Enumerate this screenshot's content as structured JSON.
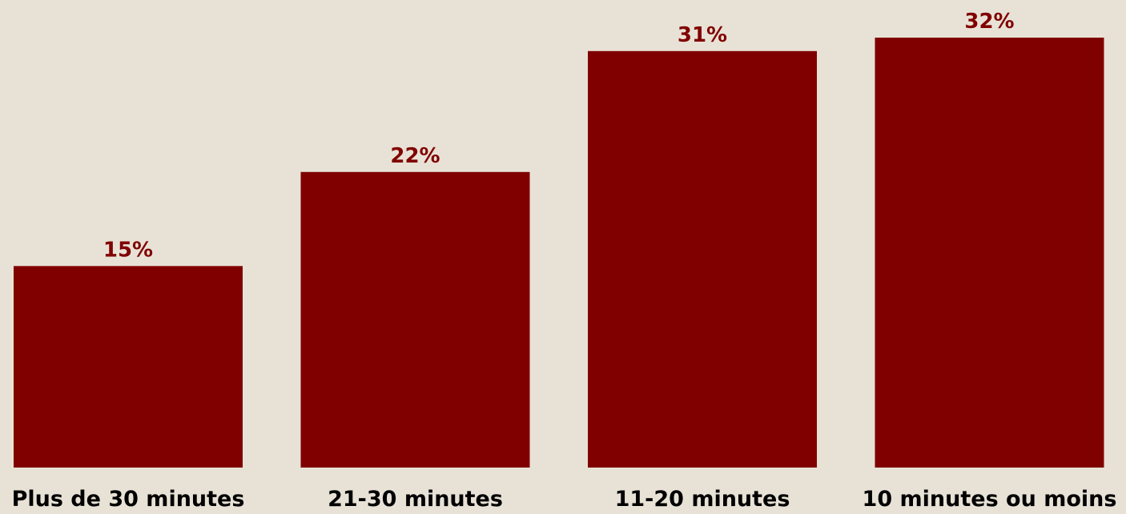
{
  "chart_data": {
    "type": "bar",
    "categories": [
      "Plus de 30 minutes",
      "21-30 minutes",
      "11-20 minutes",
      "10 minutes ou moins"
    ],
    "values": [
      15,
      22,
      31,
      32
    ],
    "value_labels": [
      "15%",
      "22%",
      "31%",
      "32%"
    ],
    "title": "",
    "xlabel": "",
    "ylabel": "",
    "ylim": [
      0,
      32
    ],
    "grid": false,
    "legend": "none",
    "colors": {
      "bar": "#800000",
      "value_label": "#800000",
      "category_label": "#000000",
      "background": "#e8e2d6"
    }
  }
}
